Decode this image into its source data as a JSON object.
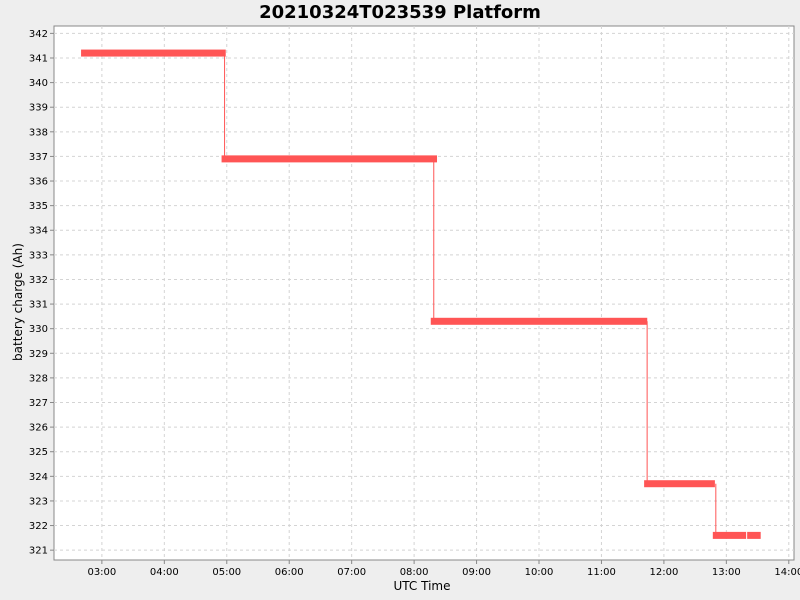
{
  "chart_data": {
    "type": "line",
    "title": "20210324T023539 Platform",
    "xlabel": "UTC Time",
    "ylabel": "battery charge (Ah)",
    "x_ticks": [
      "03:00",
      "04:00",
      "05:00",
      "06:00",
      "07:00",
      "08:00",
      "09:00",
      "10:00",
      "11:00",
      "12:00",
      "13:00",
      "14:00"
    ],
    "xlim": [
      "02:14",
      "14:05"
    ],
    "ylim": [
      320.6,
      342.3
    ],
    "y_ticks": [
      321,
      322,
      323,
      324,
      325,
      326,
      327,
      328,
      329,
      330,
      331,
      332,
      333,
      334,
      335,
      336,
      337,
      338,
      339,
      340,
      341,
      342
    ],
    "grid": true,
    "series_color": "#ff5555",
    "segments": [
      {
        "x_start": "02:40",
        "x_end": "04:59",
        "y": 341.2
      },
      {
        "x_start": "04:55",
        "x_end": "08:22",
        "y": 336.9
      },
      {
        "x_start": "08:16",
        "x_end": "11:44",
        "y": 330.3
      },
      {
        "x_start": "11:41",
        "x_end": "12:49",
        "y": 323.7
      },
      {
        "x_start": "12:47",
        "x_end": "13:19",
        "y": 321.6
      },
      {
        "x_start": "13:20",
        "x_end": "13:33",
        "y": 321.6
      }
    ]
  }
}
